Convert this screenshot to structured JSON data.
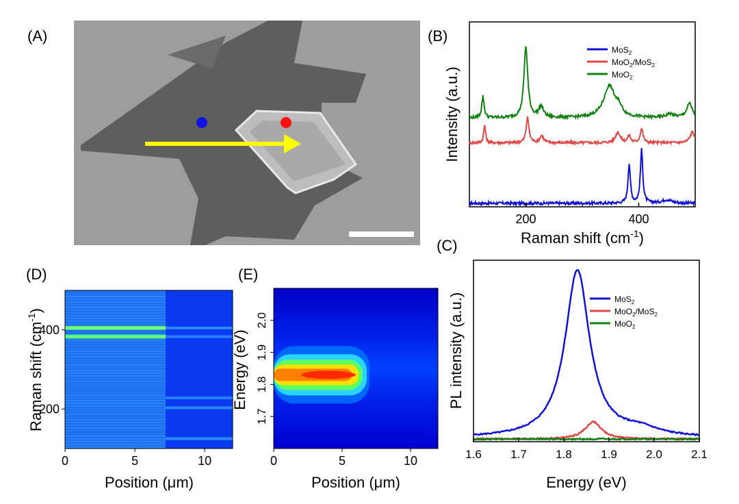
{
  "colors": {
    "mos2": "#1010d8",
    "moo2_mos2": "#e04848",
    "moo2": "#108010",
    "arrow": "#ffff00",
    "sem_bg": "#9a9a9a",
    "sem_flake": "#5c5c5c",
    "sem_plate": "#b8b8b8"
  },
  "panel_a": {
    "label": "(A)",
    "markers": [
      "blue-dot-MoS2",
      "red-dot-MoO2/MoS2"
    ],
    "scale_bar": "white",
    "arrow": "line-scan direction"
  },
  "chart_data": [
    {
      "id": "B",
      "panel_label": "(B)",
      "type": "line",
      "xlabel": "Raman shift (cm",
      "xlabel_sup": "-1",
      "xlabel_end": ")",
      "ylabel": "Intensity (a.u.)",
      "xlim": [
        100,
        500
      ],
      "xticks": [
        200,
        400
      ],
      "legend": [
        "MoS",
        "MoO",
        "MoO"
      ],
      "legend_location": "top-right",
      "series": [
        {
          "name": "MoS2",
          "offset": 0.05,
          "baseline": 0.0,
          "peaks": [
            [
              383,
              0.55,
              2.5
            ],
            [
              405,
              0.75,
              2.5
            ],
            [
              450,
              0.05,
              10
            ]
          ]
        },
        {
          "name": "MoO2/MoS2",
          "offset": 0.9,
          "baseline": 0.0,
          "peaks": [
            [
              127,
              0.25,
              2
            ],
            [
              203,
              0.35,
              3
            ],
            [
              228,
              0.1,
              4
            ],
            [
              363,
              0.15,
              5
            ],
            [
              383,
              0.1,
              3
            ],
            [
              405,
              0.2,
              3
            ],
            [
              495,
              0.15,
              5
            ]
          ]
        },
        {
          "name": "MoO2",
          "offset": 1.25,
          "baseline": 0.0,
          "peaks": [
            [
              124,
              0.3,
              2.5
            ],
            [
              200,
              1.0,
              4
            ],
            [
              227,
              0.15,
              5
            ],
            [
              348,
              0.45,
              12
            ],
            [
              365,
              0.1,
              6
            ],
            [
              455,
              0.05,
              8
            ],
            [
              490,
              0.2,
              6
            ]
          ]
        }
      ],
      "ylim": [
        0,
        2.6
      ]
    },
    {
      "id": "C",
      "panel_label": "(C)",
      "type": "line",
      "xlabel": "Energy (eV)",
      "ylabel": "PL intensity (a.u.)",
      "xlim": [
        1.6,
        2.1
      ],
      "xticks": [
        1.6,
        1.7,
        1.8,
        1.9,
        2.0,
        2.1
      ],
      "legend": [
        "MoS",
        "MoO",
        "MoO"
      ],
      "legend_location": "top-right",
      "series": [
        {
          "name": "MoS2",
          "peaks": [
            [
              1.83,
              0.97,
              0.033
            ],
            [
              1.97,
              0.04,
              0.05
            ]
          ],
          "base": 0.02
        },
        {
          "name": "MoO2/MoS2",
          "peaks": [
            [
              1.865,
              0.1,
              0.022
            ]
          ],
          "base": 0.015
        },
        {
          "name": "MoO2",
          "peaks": [],
          "base": 0.015
        }
      ],
      "ylim": [
        0,
        1.05
      ]
    },
    {
      "id": "D",
      "panel_label": "(D)",
      "type": "heatmap",
      "xlabel": "Position (μm)",
      "ylabel": "Raman shift (cm",
      "ylabel_sup": "-1",
      "ylabel_end": ")",
      "xlim": [
        0,
        12
      ],
      "ylim": [
        100,
        500
      ],
      "xticks": [
        0,
        5,
        10
      ],
      "yticks": [
        200,
        400
      ],
      "bands_left": [
        [
          405,
          0.65
        ],
        [
          383,
          0.5
        ]
      ],
      "bands_right": [
        [
          405,
          0.2
        ],
        [
          383,
          0.15
        ],
        [
          228,
          0.15
        ],
        [
          203,
          0.2
        ],
        [
          125,
          0.25
        ]
      ],
      "boundary": 7.2
    },
    {
      "id": "E",
      "panel_label": "(E)",
      "type": "heatmap",
      "xlabel": "Position (μm)",
      "ylabel": "Energy (eV)",
      "xlim": [
        0,
        12
      ],
      "ylim": [
        1.6,
        2.1
      ],
      "xticks": [
        0,
        5,
        10
      ],
      "yticks": [
        1.7,
        1.8,
        1.9,
        2.0
      ],
      "hotspot": {
        "energy": 1.83,
        "x_start": 0,
        "x_end": 7.0,
        "peak_x": 5
      }
    }
  ],
  "subscripts": {
    "two": "2"
  }
}
